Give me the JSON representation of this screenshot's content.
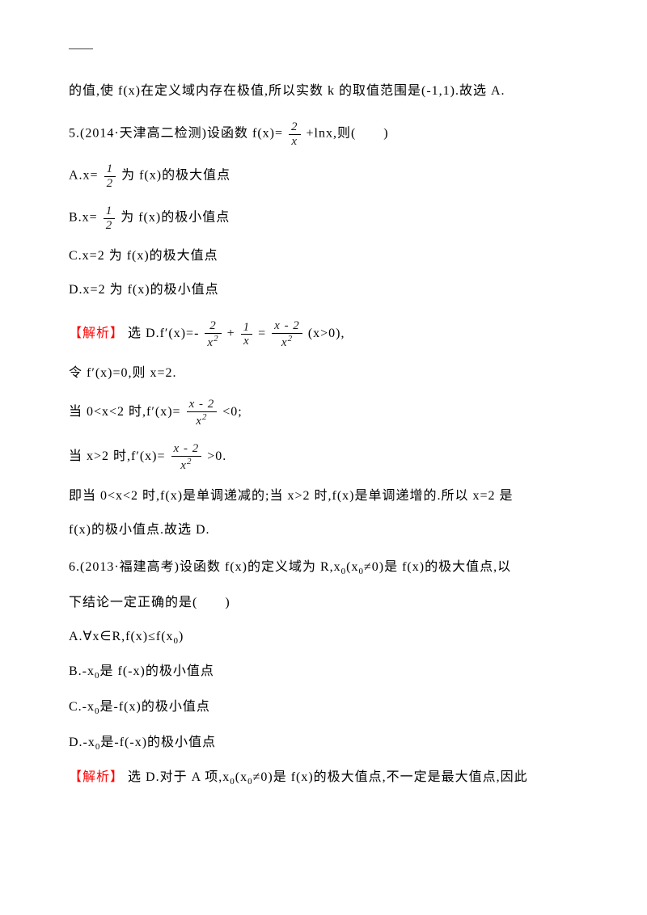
{
  "colors": {
    "text": "#000000",
    "accent_red": "#ff0000",
    "background": "#ffffff",
    "rule": "#444444"
  },
  "typography": {
    "body_font": "SimSun",
    "body_size_pt": 12,
    "math_font": "Cambria Math",
    "line_spacing_em": 1.5
  },
  "top_line": "的值,使 f(x)在定义域内存在极值,所以实数 k 的取值范围是(-1,1).故选 A.",
  "q5": {
    "stem_prefix": "5.(2014·天津高二检测)设函数 f(x)=",
    "frac1_num": "2",
    "frac1_den": "x",
    "stem_suffix": "+lnx,则(　　)",
    "optA_prefix": "A.x=",
    "optA_frac_num": "1",
    "optA_frac_den": "2",
    "optA_suffix": "为 f(x)的极大值点",
    "optB_prefix": "B.x=",
    "optB_frac_num": "1",
    "optB_frac_den": "2",
    "optB_suffix": "为 f(x)的极小值点",
    "optC": "C.x=2 为 f(x)的极大值点",
    "optD": "D.x=2 为 f(x)的极小值点",
    "sol_label": "【解析】",
    "sol1_a": "选 D.f′(x)=-",
    "sol1_frac1_num": "2",
    "sol1_frac1_den": "x",
    "sol1_b": "+",
    "sol1_frac2_num": "1",
    "sol1_frac2_den": "x",
    "sol1_c": "=",
    "sol1_frac3_num": "x - 2",
    "sol1_frac3_den": "x",
    "sol1_d": "(x>0),",
    "sol2": "令 f′(x)=0,则 x=2.",
    "sol3_a": "当 0<x<2 时,f′(x)=",
    "sol3_frac_num": "x - 2",
    "sol3_frac_den": "x",
    "sol3_b": "<0;",
    "sol4_a": "当 x>2 时,f′(x)=",
    "sol4_frac_num": "x - 2",
    "sol4_frac_den": "x",
    "sol4_b": ">0.",
    "sol5": "即当 0<x<2 时,f(x)是单调递减的;当 x>2 时,f(x)是单调递增的.所以 x=2 是",
    "sol6": "f(x)的极小值点.故选 D."
  },
  "q6": {
    "stem_a": "6.(2013·福建高考)设函数 f(x)的定义域为 R,x",
    "stem_sub0": "0",
    "stem_b": "(x",
    "stem_c": "≠0)是 f(x)的极大值点,以",
    "stem_d": "下结论一定正确的是(　　)",
    "optA_a": "A.∀x∈R,f(x)≤f(x",
    "optA_sub": "0",
    "optA_b": ")",
    "optB_a": "B.-x",
    "optB_sub": "0",
    "optB_b": "是 f(-x)的极小值点",
    "optC_a": "C.-x",
    "optC_sub": "0",
    "optC_b": "是-f(x)的极小值点",
    "optD_a": "D.-x",
    "optD_sub": "0",
    "optD_b": "是-f(-x)的极小值点",
    "sol_label": "【解析】",
    "sol_a": "选 D.对于 A 项,x",
    "sol_sub1": "0",
    "sol_b": "(x",
    "sol_sub2": "0",
    "sol_c": "≠0)是 f(x)的极大值点,不一定是最大值点,因此"
  }
}
